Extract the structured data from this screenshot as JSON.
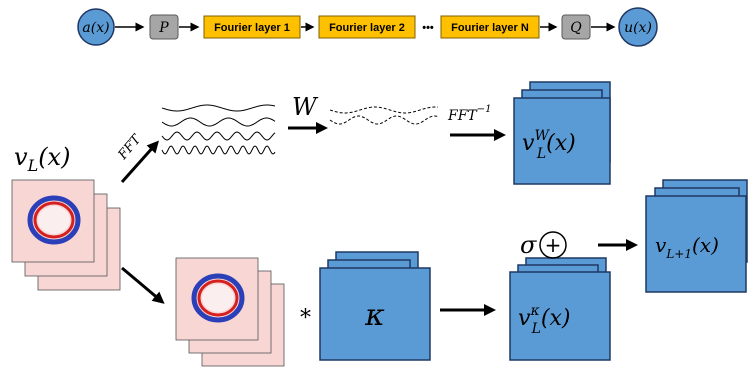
{
  "pipeline": {
    "nodes": [
      {
        "label": "a(x)"
      },
      {
        "label": "P"
      },
      {
        "label": "Fourier layer 1"
      },
      {
        "label": "Fourier layer 2"
      },
      {
        "label": "Fourier layer N"
      },
      {
        "label": "Q"
      },
      {
        "label": "u(x)"
      }
    ],
    "ellipsis": "•••"
  },
  "layer": {
    "input": {
      "base": "v",
      "sub": "L",
      "arg": "(x)"
    },
    "fft": "FFT",
    "weight": "W",
    "ifft": {
      "base": "FFT",
      "sup": "−1"
    },
    "spectral_out": {
      "base": "v",
      "sub": "L",
      "sup": "W",
      "arg": "(x)"
    },
    "activation": "σ",
    "sum": "+",
    "conv": "*",
    "kernel": "κ",
    "conv_out": {
      "base": "v",
      "sub": "L",
      "sup": "κ",
      "arg": "(x)"
    },
    "output": {
      "base": "v",
      "sub": "L+1",
      "arg": "(x)"
    }
  }
}
